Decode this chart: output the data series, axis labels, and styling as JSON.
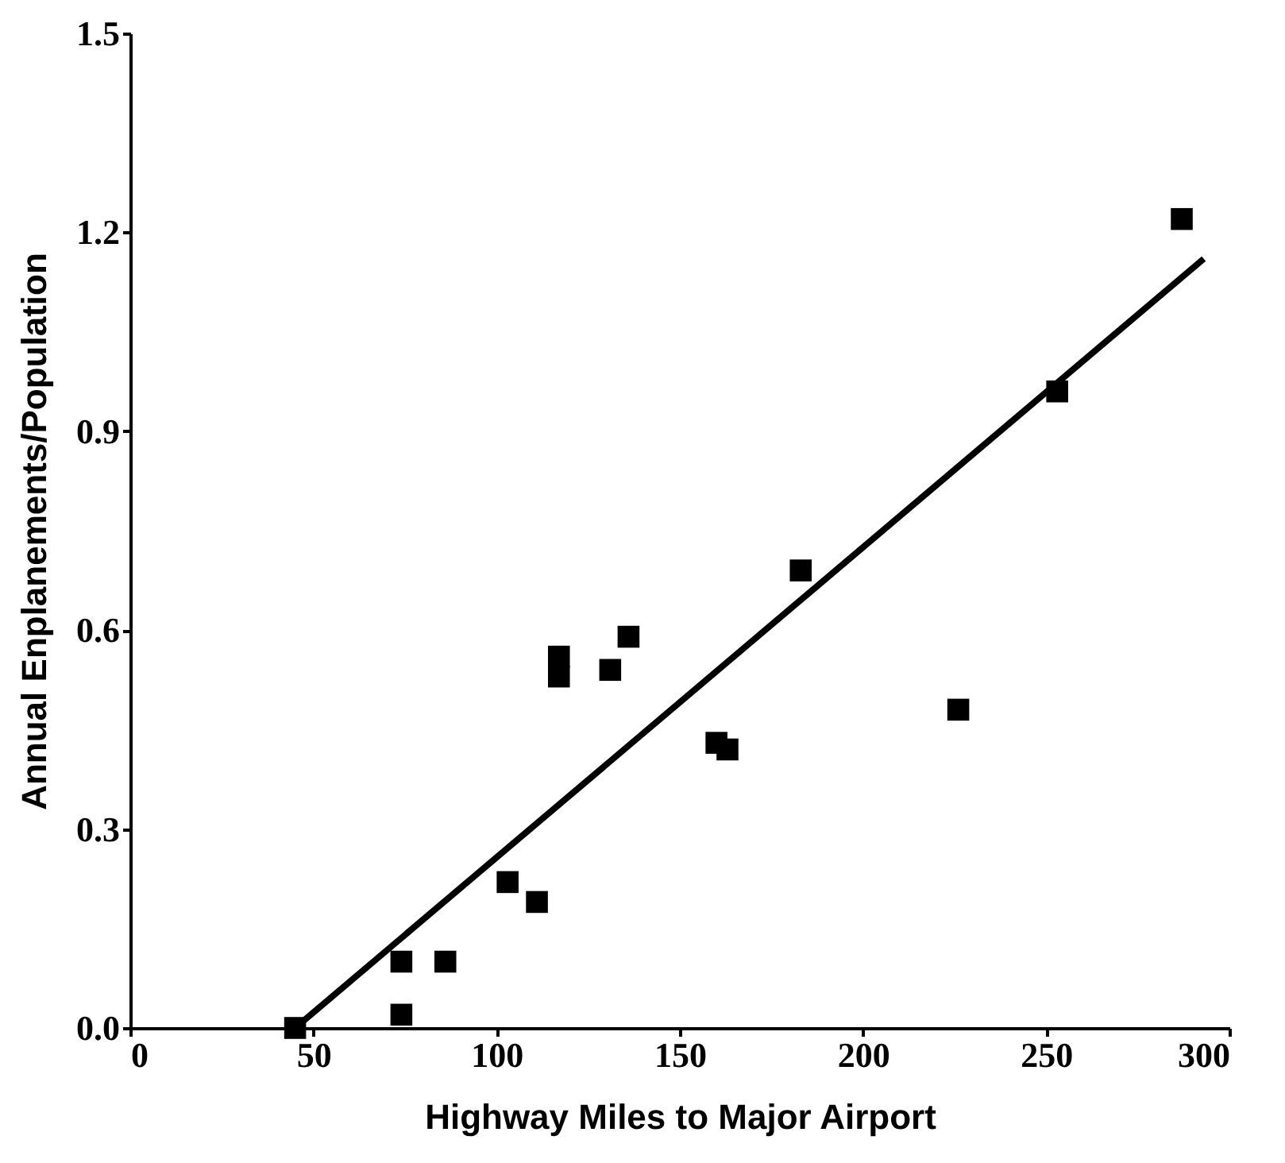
{
  "chart_data": {
    "type": "scatter",
    "xlabel": "Highway Miles to Major Airport",
    "ylabel": "Annual Enplanements/Population",
    "xlim": [
      0,
      300
    ],
    "ylim": [
      0,
      1.5
    ],
    "xticks": [
      0,
      50,
      100,
      150,
      200,
      250,
      300
    ],
    "yticks": [
      {
        "value": 0,
        "label": "0.0"
      },
      {
        "value": 0.3,
        "label": "0.3"
      },
      {
        "value": 0.6,
        "label": "0.6"
      },
      {
        "value": 0.9,
        "label": "0.9"
      },
      {
        "value": 1.2,
        "label": "1.2"
      },
      {
        "value": 1.5,
        "label": "1.5"
      }
    ],
    "grid": false,
    "marker": "square",
    "series": [
      {
        "color": "#000000",
        "x": [
          45,
          74,
          74,
          86,
          103,
          111,
          117,
          117,
          131,
          136,
          160,
          163,
          183,
          226,
          253,
          287
        ],
        "values": [
          0.0,
          0.1,
          0.02,
          0.1,
          0.22,
          0.19,
          0.56,
          0.53,
          0.54,
          0.59,
          0.43,
          0.42,
          0.69,
          0.48,
          0.96,
          1.22
        ]
      },
      {
        "type": "line",
        "color": "#000000",
        "marker": "none",
        "x": [
          45,
          293
        ],
        "values": [
          0.0,
          1.16
        ]
      }
    ]
  }
}
